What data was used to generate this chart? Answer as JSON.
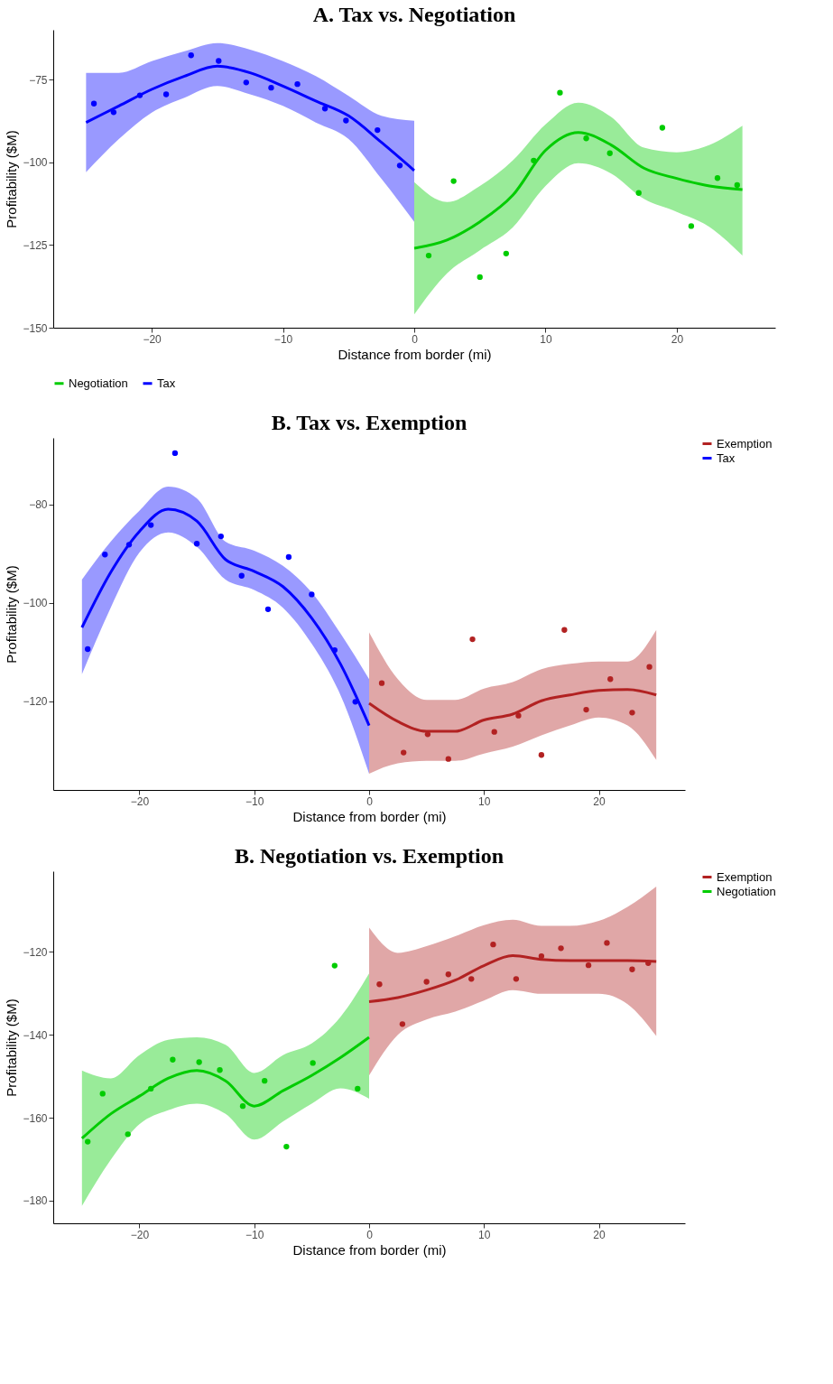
{
  "chart_data": [
    {
      "type": "line",
      "title": "A. Tax vs. Negotiation",
      "xlabel": "Distance from border (mi)",
      "ylabel": "Profitability ($M)",
      "xlim": [
        -27.5,
        27.5
      ],
      "ylim": [
        -150,
        -60
      ],
      "xticks": [
        -20,
        -10,
        0,
        10,
        20
      ],
      "yticks": [
        -75,
        -100,
        -125,
        -150
      ],
      "legend": "bottom",
      "series": [
        {
          "name": "Negotiation",
          "type": "line",
          "color": "#00cc00",
          "x": [
            0,
            2.5,
            5,
            7.5,
            10,
            12.5,
            15,
            17.5,
            20,
            22.5,
            25
          ],
          "values": [
            -126,
            -123.5,
            -118,
            -110,
            -96.4,
            -91,
            -94.8,
            -101.8,
            -104.9,
            -107.2,
            -108.3
          ],
          "lower": [
            -146,
            -133.6,
            -126.6,
            -119.7,
            -107.2,
            -100.3,
            -103.4,
            -111.1,
            -115,
            -119.6,
            -128.2
          ],
          "upper": [
            -106,
            -112,
            -107.2,
            -99.5,
            -88.6,
            -82,
            -86.3,
            -95.6,
            -97,
            -94.8,
            -89
          ]
        },
        {
          "name": "Tax",
          "type": "line",
          "color": "#0000ff",
          "x": [
            -25,
            -22.5,
            -20,
            -17.5,
            -15,
            -12.5,
            -10,
            -7.5,
            -5,
            -2.5,
            0
          ],
          "values": [
            -88,
            -83,
            -78,
            -74,
            -71,
            -73,
            -77,
            -81.5,
            -86,
            -94,
            -102.5
          ],
          "lower": [
            -103,
            -93,
            -85,
            -80.5,
            -77,
            -79.5,
            -83,
            -88,
            -93,
            -105,
            -118
          ],
          "upper": [
            -73,
            -73,
            -69.5,
            -66.5,
            -64,
            -66,
            -69.5,
            -74,
            -80,
            -86,
            -87.5
          ]
        },
        {
          "type": "scatter",
          "color": "#00cc00",
          "x": [
            1.1,
            3.0,
            5.0,
            7.0,
            9.1,
            11.1,
            13.1,
            14.9,
            17.1,
            18.9,
            21.1,
            23.1,
            24.6
          ],
          "values": [
            -128.2,
            -105.7,
            -134.7,
            -127.6,
            -99.5,
            -79,
            -92.8,
            -97.3,
            -109.3,
            -89.6,
            -119.3,
            -104.8,
            -106.9
          ]
        },
        {
          "type": "scatter",
          "color": "#0000ff",
          "x": [
            -24.4,
            -22.9,
            -20.9,
            -18.9,
            -17.0,
            -14.9,
            -12.8,
            -10.9,
            -8.9,
            -6.8,
            -5.2,
            -2.8,
            -1.1
          ],
          "values": [
            -82.3,
            -84.9,
            -79.8,
            -79.5,
            -67.7,
            -69.4,
            -75.9,
            -77.5,
            -76.4,
            -83.8,
            -87.4,
            -90.3,
            -101
          ]
        }
      ]
    },
    {
      "type": "line",
      "title": "B. Tax vs. Exemption",
      "xlabel": "Distance from border (mi)",
      "ylabel": "Profitability ($M)",
      "xlim": [
        -27.5,
        27.5
      ],
      "ylim": [
        -138,
        -66.5
      ],
      "xticks": [
        -20,
        -10,
        0,
        10,
        20
      ],
      "yticks": [
        -80,
        -100,
        -120
      ],
      "legend": "right",
      "series": [
        {
          "name": "Exemption",
          "type": "line",
          "color": "#b22222",
          "x": [
            0,
            2.5,
            5,
            7.5,
            10,
            12.5,
            15,
            17.5,
            20,
            22.5,
            25
          ],
          "values": [
            -120.4,
            -124.1,
            -126.1,
            -126.1,
            -123.8,
            -122.6,
            -119.9,
            -118.7,
            -117.8,
            -117.6,
            -118.7
          ],
          "lower": [
            -134.7,
            -132.6,
            -132.1,
            -132.1,
            -130.6,
            -129.2,
            -126.9,
            -124.9,
            -123.3,
            -124.9,
            -131.9
          ],
          "upper": [
            -106,
            -115.5,
            -119.7,
            -119.7,
            -117.4,
            -116.1,
            -113.5,
            -112.4,
            -111.9,
            -111.9,
            -105.5
          ]
        },
        {
          "name": "Tax",
          "type": "line",
          "color": "#0000ff",
          "x": [
            -25,
            -22.5,
            -20,
            -17.5,
            -15,
            -12.5,
            -10,
            -7.5,
            -5,
            -2.5,
            0
          ],
          "values": [
            -105,
            -93.8,
            -85.5,
            -81,
            -83.4,
            -91.2,
            -93.6,
            -96.7,
            -103.1,
            -112.4,
            -124.9
          ],
          "lower": [
            -114.5,
            -101,
            -89.8,
            -85.7,
            -88.6,
            -95.3,
            -97.4,
            -101,
            -108.3,
            -118.7,
            -134.7
          ],
          "upper": [
            -95.3,
            -87.6,
            -81.3,
            -76.4,
            -78.8,
            -87.6,
            -89.4,
            -92.5,
            -97.9,
            -106.2,
            -115.5
          ]
        },
        {
          "type": "scatter",
          "color": "#b22222",
          "x": [
            1.1,
            3.0,
            5.1,
            6.9,
            9.0,
            10.9,
            13.0,
            15.0,
            17.0,
            18.9,
            21.0,
            22.9,
            24.4
          ],
          "values": [
            -116.3,
            -130.4,
            -126.7,
            -131.7,
            -107.4,
            -126.2,
            -122.9,
            -130.9,
            -105.5,
            -121.7,
            -115.5,
            -122.3,
            -113
          ]
        },
        {
          "type": "scatter",
          "color": "#0000ff",
          "x": [
            -24.5,
            -23.0,
            -20.9,
            -19.0,
            -16.9,
            -15.0,
            -12.9,
            -11.1,
            -8.8,
            -7.0,
            -5.0,
            -3.0,
            -1.2
          ],
          "values": [
            -109.4,
            -90.2,
            -88.2,
            -84.2,
            -69.6,
            -88,
            -86.5,
            -94.5,
            -101.3,
            -90.7,
            -98.3,
            -109.6,
            -120.1
          ]
        }
      ]
    },
    {
      "type": "line",
      "title": "B. Negotiation vs. Exemption",
      "xlabel": "Distance from border (mi)",
      "ylabel": "Profitability ($M)",
      "xlim": [
        -27.5,
        27.5
      ],
      "ylim": [
        -185.5,
        -100.5
      ],
      "xticks": [
        -20,
        -10,
        0,
        10,
        20
      ],
      "yticks": [
        -120,
        -140,
        -160,
        -180
      ],
      "legend": "right",
      "series": [
        {
          "name": "Exemption",
          "type": "line",
          "color": "#b22222",
          "x": [
            0,
            2.5,
            5,
            7.5,
            10,
            12.5,
            15,
            17.5,
            20,
            22.5,
            25
          ],
          "values": [
            -132,
            -131,
            -129.2,
            -126.8,
            -123.3,
            -120.9,
            -121.8,
            -122.1,
            -122.1,
            -122.1,
            -122.3
          ],
          "lower": [
            -149.8,
            -140,
            -136.3,
            -134.4,
            -131.7,
            -129.2,
            -130.1,
            -130.1,
            -130.1,
            -132.6,
            -140.3
          ],
          "upper": [
            -114.1,
            -120.2,
            -118.6,
            -116.2,
            -113.5,
            -112.2,
            -113.7,
            -113.7,
            -112.5,
            -109.1,
            -104.2
          ]
        },
        {
          "name": "Negotiation",
          "type": "line",
          "color": "#00cc00",
          "x": [
            -25,
            -22.5,
            -20,
            -17.5,
            -15,
            -12.5,
            -10,
            -7.5,
            -5,
            -2.5,
            0
          ],
          "values": [
            -165,
            -159.1,
            -154.8,
            -150.5,
            -148.6,
            -151.1,
            -157.2,
            -153.5,
            -149.8,
            -145.5,
            -140.6
          ],
          "lower": [
            -181.3,
            -170.2,
            -161.6,
            -158.2,
            -156.6,
            -159.1,
            -165.3,
            -160.9,
            -156.6,
            -152.9,
            -155.4
          ],
          "upper": [
            -148.6,
            -150.5,
            -144.9,
            -141.2,
            -140.6,
            -142.4,
            -149.2,
            -144.9,
            -142.1,
            -135.7,
            -125.2
          ]
        },
        {
          "type": "scatter",
          "color": "#b22222",
          "x": [
            0.9,
            2.9,
            5.0,
            6.9,
            8.9,
            10.8,
            12.8,
            15.0,
            16.7,
            19.1,
            20.7,
            22.9,
            24.3
          ],
          "values": [
            -127.8,
            -137.4,
            -127.2,
            -125.4,
            -126.5,
            -118.2,
            -126.5,
            -121,
            -119.1,
            -123.2,
            -117.8,
            -124.2,
            -122.7
          ]
        },
        {
          "type": "scatter",
          "color": "#00cc00",
          "x": [
            -24.5,
            -23.2,
            -21.0,
            -19.0,
            -17.1,
            -14.8,
            -13.0,
            -11.0,
            -9.1,
            -7.2,
            -4.9,
            -3.0,
            -1.0
          ],
          "values": [
            -165.8,
            -154.2,
            -164,
            -153,
            -146,
            -146.6,
            -148.5,
            -157.2,
            -151.1,
            -167,
            -146.8,
            -123.3,
            -153
          ]
        }
      ]
    }
  ]
}
